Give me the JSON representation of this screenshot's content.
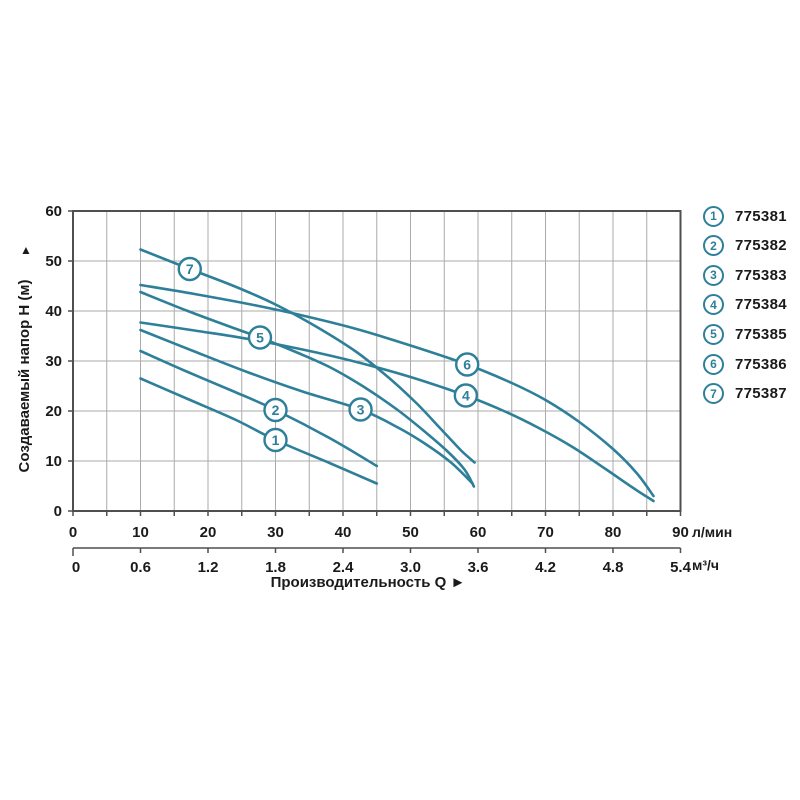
{
  "chart_data": {
    "type": "line",
    "title": "",
    "x_axis": {
      "label": "Производительность Q",
      "label_arrow": "►",
      "units_primary": "л/мин",
      "ticks_primary": [
        "0",
        "10",
        "20",
        "30",
        "40",
        "50",
        "60",
        "70",
        "80",
        "90"
      ],
      "units_secondary": "м³/ч",
      "ticks_secondary": [
        "0",
        "0.6",
        "1.2",
        "1.8",
        "2.4",
        "3.0",
        "3.6",
        "4.2",
        "4.8",
        "5.4"
      ],
      "range_primary": [
        0,
        90
      ],
      "grid_step_primary": 5
    },
    "y_axis": {
      "label": "Создаваемый напор H (м)",
      "label_arrow": "▲",
      "ticks": [
        "0",
        "10",
        "20",
        "30",
        "40",
        "50",
        "60"
      ],
      "range": [
        0,
        60
      ],
      "grid_step": 10
    },
    "grid": true,
    "legend_position": "right",
    "series": [
      {
        "num": "1",
        "model": "775381",
        "label_at": [
          30,
          14.2
        ],
        "points": [
          [
            10,
            26.5
          ],
          [
            17,
            22.4
          ],
          [
            24,
            18.3
          ],
          [
            30,
            14.2
          ],
          [
            38,
            9.6
          ],
          [
            45,
            5.5
          ]
        ]
      },
      {
        "num": "2",
        "model": "775382",
        "label_at": [
          30,
          20.2
        ],
        "points": [
          [
            10,
            32
          ],
          [
            17,
            27.8
          ],
          [
            24,
            23.8
          ],
          [
            30,
            20.2
          ],
          [
            38,
            14.6
          ],
          [
            45,
            9
          ]
        ]
      },
      {
        "num": "3",
        "model": "775383",
        "label_at": [
          42.6,
          20.3
        ],
        "points": [
          [
            10,
            36.2
          ],
          [
            18,
            31.9
          ],
          [
            26,
            27.7
          ],
          [
            34,
            23.9
          ],
          [
            42.6,
            20.3
          ],
          [
            48,
            16.8
          ],
          [
            52,
            13.6
          ],
          [
            56,
            9.7
          ],
          [
            59.2,
            5.5
          ]
        ]
      },
      {
        "num": "4",
        "model": "775384",
        "label_at": [
          58.2,
          23.1
        ],
        "points": [
          [
            10,
            37.7
          ],
          [
            18,
            36.1
          ],
          [
            26,
            34.4
          ],
          [
            34,
            32.3
          ],
          [
            42,
            29.8
          ],
          [
            50,
            26.8
          ],
          [
            58.2,
            23.1
          ],
          [
            64,
            19.9
          ],
          [
            69,
            16.6
          ],
          [
            74,
            12.8
          ],
          [
            79,
            8.3
          ],
          [
            83,
            4.6
          ],
          [
            86,
            2
          ]
        ]
      },
      {
        "num": "5",
        "model": "775385",
        "label_at": [
          27.7,
          34.7
        ],
        "points": [
          [
            10,
            43.8
          ],
          [
            17,
            40
          ],
          [
            24,
            36.5
          ],
          [
            27.7,
            34.7
          ],
          [
            33,
            31.8
          ],
          [
            38,
            28.8
          ],
          [
            43,
            24.9
          ],
          [
            48,
            20.3
          ],
          [
            52,
            16
          ],
          [
            55.5,
            11.9
          ],
          [
            58,
            8.3
          ],
          [
            59.4,
            4.9
          ]
        ]
      },
      {
        "num": "6",
        "model": "775386",
        "label_at": [
          58.4,
          29.3
        ],
        "points": [
          [
            10,
            45.2
          ],
          [
            18,
            43.4
          ],
          [
            26,
            41.4
          ],
          [
            34,
            39.1
          ],
          [
            42,
            36.4
          ],
          [
            50,
            33.1
          ],
          [
            58.4,
            29.3
          ],
          [
            65,
            25.6
          ],
          [
            70,
            22.2
          ],
          [
            75,
            17.8
          ],
          [
            80,
            12.4
          ],
          [
            83.5,
            7.6
          ],
          [
            86,
            3
          ]
        ]
      },
      {
        "num": "7",
        "model": "775387",
        "label_at": [
          17.3,
          48.4
        ],
        "points": [
          [
            10,
            52.3
          ],
          [
            17.3,
            48.4
          ],
          [
            24,
            44.9
          ],
          [
            30,
            41.3
          ],
          [
            36,
            36.9
          ],
          [
            42,
            31.8
          ],
          [
            47,
            26.4
          ],
          [
            51,
            21.4
          ],
          [
            54.5,
            16.4
          ],
          [
            57.5,
            12.1
          ],
          [
            59.5,
            9.7
          ]
        ]
      }
    ]
  },
  "legend": {
    "items": [
      {
        "num": "1",
        "model": "775381"
      },
      {
        "num": "2",
        "model": "775382"
      },
      {
        "num": "3",
        "model": "775383"
      },
      {
        "num": "4",
        "model": "775384"
      },
      {
        "num": "5",
        "model": "775385"
      },
      {
        "num": "6",
        "model": "775386"
      },
      {
        "num": "7",
        "model": "775387"
      }
    ]
  },
  "colors": {
    "curve": "#2e7f99",
    "grid": "#ababab",
    "axis": "#4f4f4f",
    "text": "#1a1a1a",
    "background": "#ffffff"
  }
}
